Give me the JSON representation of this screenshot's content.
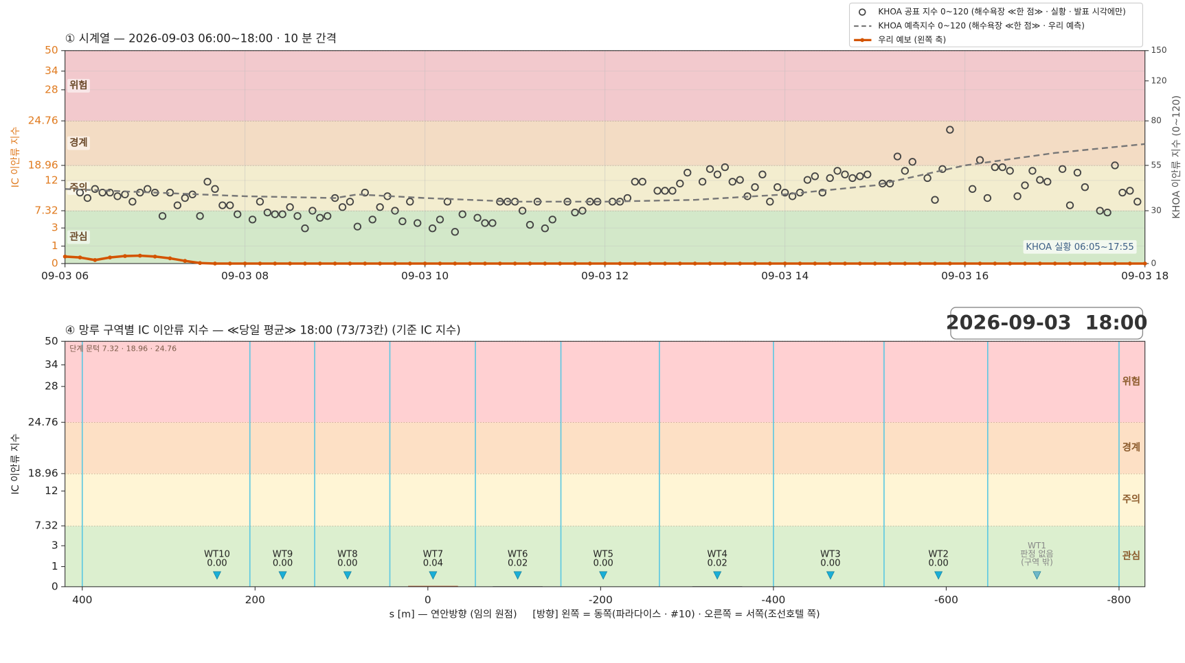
{
  "chart_data": [
    {
      "type": "line",
      "title": "① 시계열 — 2026-09-03 06:00~18:00 · 10 분 간격",
      "ylabel": "IC 이안류 지수",
      "y2label": "KHOA 이안류 지수 (0~120)",
      "xlim": [
        "06:00",
        "18:00"
      ],
      "xticks": [
        {
          "value": "06:00",
          "label": "09-03 06"
        },
        {
          "value": "08:00",
          "label": "09-03 08"
        },
        {
          "value": "10:00",
          "label": "09-03 10"
        },
        {
          "value": "12:00",
          "label": "09-03 12"
        },
        {
          "value": "14:00",
          "label": "09-03 14"
        },
        {
          "value": "16:00",
          "label": "09-03 16"
        },
        {
          "value": "18:00",
          "label": "09-03 18"
        }
      ],
      "ylim": [
        0,
        50
      ],
      "yticks": [
        0,
        1,
        3,
        7.32,
        12,
        18.96,
        24.76,
        28,
        34,
        50
      ],
      "y2lim": [
        0,
        150
      ],
      "y2ticks": [
        0,
        30,
        55,
        80,
        120,
        150
      ],
      "grid": true,
      "legend": "upper right",
      "annotation": "KHOA 실황 06:05~17:55",
      "bands": [
        {
          "from": 0,
          "to": 7.32,
          "label": "관심",
          "color": "#d3e8c9"
        },
        {
          "from": 7.32,
          "to": 18.96,
          "label": "주의",
          "color": "#f3edcf"
        },
        {
          "from": 18.96,
          "to": 24.76,
          "label": "경계",
          "color": "#f3dcc4"
        },
        {
          "from": 24.76,
          "to": 50,
          "label": "위험",
          "color": "#f2c9cd"
        }
      ],
      "series": [
        {
          "name": "KHOA 공표 지수 0~120 (해수욕장 ≪한 점≫ · 실황 · 발표 시각에만)",
          "style": "markers",
          "axis": "y2",
          "color": "#444444",
          "x": [
            "06:10",
            "06:15",
            "06:20",
            "06:25",
            "06:30",
            "06:35",
            "06:40",
            "06:45",
            "06:50",
            "06:55",
            "07:00",
            "07:05",
            "07:10",
            "07:15",
            "07:20",
            "07:25",
            "07:30",
            "07:35",
            "07:40",
            "07:45",
            "07:50",
            "07:55",
            "08:05",
            "08:10",
            "08:15",
            "08:20",
            "08:25",
            "08:30",
            "08:35",
            "08:40",
            "08:45",
            "08:50",
            "08:55",
            "09:00",
            "09:05",
            "09:10",
            "09:15",
            "09:20",
            "09:25",
            "09:30",
            "09:35",
            "09:40",
            "09:45",
            "09:50",
            "09:55",
            "10:05",
            "10:10",
            "10:15",
            "10:20",
            "10:25",
            "10:35",
            "10:40",
            "10:45",
            "10:50",
            "10:55",
            "11:00",
            "11:05",
            "11:10",
            "11:15",
            "11:20",
            "11:25",
            "11:35",
            "11:40",
            "11:45",
            "11:50",
            "11:55",
            "12:05",
            "12:10",
            "12:15",
            "12:20",
            "12:25",
            "12:35",
            "12:40",
            "12:45",
            "12:50",
            "12:55",
            "13:05",
            "13:10",
            "13:15",
            "13:20",
            "13:25",
            "13:30",
            "13:35",
            "13:40",
            "13:45",
            "13:50",
            "13:55",
            "14:00",
            "14:05",
            "14:10",
            "14:15",
            "14:20",
            "14:25",
            "14:30",
            "14:35",
            "14:40",
            "14:45",
            "14:50",
            "14:55",
            "15:05",
            "15:10",
            "15:15",
            "15:20",
            "15:25",
            "15:35",
            "15:40",
            "15:45",
            "15:50",
            "16:05",
            "16:10",
            "16:15",
            "16:20",
            "16:25",
            "16:30",
            "16:35",
            "16:40",
            "16:45",
            "16:50",
            "16:55",
            "17:05",
            "17:10",
            "17:15",
            "17:20",
            "17:30",
            "17:35",
            "17:40",
            "17:45",
            "17:50",
            "17:55"
          ],
          "values": [
            40,
            37,
            42,
            40,
            40,
            38,
            39,
            35,
            40,
            42,
            40,
            27,
            40,
            33,
            37,
            39,
            27,
            46,
            42,
            33,
            33,
            28,
            25,
            35,
            29,
            28,
            28,
            32,
            27,
            20,
            30,
            26,
            27,
            37,
            32,
            35,
            21,
            40,
            25,
            32,
            38,
            30,
            24,
            35,
            23,
            20,
            25,
            35,
            18,
            28,
            26,
            23,
            23,
            35,
            35,
            35,
            30,
            22,
            35,
            20,
            25,
            35,
            29,
            30,
            35,
            35,
            35,
            35,
            37,
            46,
            46,
            41,
            41,
            41,
            45,
            51,
            46,
            53,
            50,
            54,
            46,
            47,
            38,
            43,
            50,
            35,
            43,
            40,
            38,
            40,
            47,
            49,
            40,
            48,
            52,
            50,
            48,
            49,
            50,
            45,
            45,
            60,
            52,
            57,
            48,
            36,
            53,
            75,
            42,
            58,
            37,
            54,
            54,
            52,
            38,
            44,
            52,
            47,
            46,
            53,
            33,
            51,
            43,
            30,
            29,
            55,
            40,
            41,
            35
          ]
        },
        {
          "name": "KHOA 예측지수 0~120 (해수욕장 ≪한 점≫ · 우리 예측)",
          "style": "dashed",
          "axis": "y2",
          "color": "#777777",
          "x": [
            "06:00",
            "07:00",
            "08:00",
            "09:00",
            "09:15",
            "10:00",
            "11:00",
            "12:00",
            "13:00",
            "14:00",
            "15:00",
            "16:00",
            "17:00",
            "18:00"
          ],
          "values": [
            42,
            40,
            38,
            37,
            39,
            37,
            35,
            35,
            36,
            39,
            44,
            55,
            62,
            67
          ]
        },
        {
          "name": "우리 예보 (왼쪽 축)",
          "style": "line",
          "color": "#d35400",
          "x": [
            "06:00",
            "06:10",
            "06:20",
            "06:30",
            "06:40",
            "06:50",
            "07:00",
            "07:10",
            "07:20",
            "07:30",
            "07:40",
            "07:50",
            "08:00",
            "08:10",
            "08:20",
            "08:30",
            "08:40",
            "08:50",
            "09:00",
            "09:10",
            "09:20",
            "09:30",
            "09:40",
            "09:50",
            "10:00",
            "10:10",
            "10:20",
            "10:30",
            "10:40",
            "10:50",
            "11:00",
            "11:10",
            "11:20",
            "11:30",
            "11:40",
            "11:50",
            "12:00",
            "12:10",
            "12:20",
            "12:30",
            "12:40",
            "12:50",
            "13:00",
            "13:10",
            "13:20",
            "13:30",
            "13:40",
            "13:50",
            "14:00",
            "14:10",
            "14:20",
            "14:30",
            "14:40",
            "14:50",
            "15:00",
            "15:10",
            "15:20",
            "15:30",
            "15:40",
            "15:50",
            "16:00",
            "16:10",
            "16:20",
            "16:30",
            "16:40",
            "16:50",
            "17:00",
            "17:10",
            "17:20",
            "17:30",
            "17:40",
            "17:50",
            "18:00"
          ],
          "values": [
            0.4,
            0.35,
            0.2,
            0.35,
            0.43,
            0.45,
            0.4,
            0.3,
            0.15,
            0.03,
            0,
            0,
            0,
            0,
            0,
            0,
            0,
            0,
            0,
            0,
            0,
            0,
            0,
            0,
            0,
            0,
            0,
            0,
            0,
            0,
            0,
            0,
            0,
            0,
            0,
            0,
            0,
            0,
            0,
            0,
            0,
            0,
            0,
            0,
            0,
            0,
            0,
            0,
            0,
            0,
            0,
            0,
            0,
            0,
            0,
            0,
            0,
            0,
            0,
            0,
            0,
            0,
            0,
            0,
            0,
            0,
            0,
            0,
            0,
            0,
            0,
            0,
            0
          ]
        }
      ]
    },
    {
      "type": "bar",
      "title": "④ 망루 구역별 IC 이안류 지수 — ≪당일 평균≫ 18:00  (73/73칸)   (기준 IC 지수)",
      "timestamp": "2026-09-03  18:00",
      "threshold_note": "단계 문턱 7.32 · 18.96 · 24.76",
      "xlabel": "s [m] — 연안방향 (임의 원점)     [방향] 왼쪽 = 동쪽(파라다이스 · #10) · 오른쪽 = 서쪽(조선호텔 쪽)",
      "ylabel": "IC 이안류 지수",
      "xlim": [
        420,
        -830
      ],
      "xticks": [
        400,
        200,
        0,
        -200,
        -400,
        -600,
        -800
      ],
      "ylim": [
        0,
        50
      ],
      "yticks": [
        0,
        1,
        3,
        7.32,
        12,
        18.96,
        24.76,
        28,
        34,
        50
      ],
      "boundaries": [
        400,
        206,
        131,
        44,
        -55,
        -154,
        -268,
        -400,
        -528,
        -648,
        -800
      ],
      "boundary_color": "#5cc8e2",
      "marker_color": "#1aaed6",
      "bands": [
        {
          "from": 0,
          "to": 7.32,
          "label": "관심",
          "color": "#dcefcf"
        },
        {
          "from": 7.32,
          "to": 18.96,
          "label": "주의",
          "color": "#fff5d5"
        },
        {
          "from": 18.96,
          "to": 24.76,
          "label": "경계",
          "color": "#fde0c5"
        },
        {
          "from": 24.76,
          "to": 50,
          "label": "위험",
          "color": "#ffd0d2"
        }
      ],
      "categories": [
        "WT10",
        "WT9",
        "WT8",
        "WT7",
        "WT6",
        "WT5",
        "WT4",
        "WT3",
        "WT2",
        "WT1"
      ],
      "positions": [
        244,
        168,
        93,
        -6,
        -104,
        -203,
        -335,
        -466,
        -591,
        -705
      ],
      "values": [
        0,
        0,
        0,
        0.04,
        0.02,
        0,
        0.02,
        0,
        0,
        null
      ],
      "value_labels": [
        "0.00",
        "0.00",
        "0.00",
        "0.04",
        "0.02",
        "0.00",
        "0.02",
        "0.00",
        "0.00",
        null
      ],
      "no_value_label": [
        "판정 없음",
        "(구역 밖)"
      ],
      "colors": [
        "#222222",
        "#222222",
        "#222222",
        "#b5451b",
        "#222222",
        "#222222",
        "#222222",
        "#222222",
        "#222222",
        "#222222"
      ]
    }
  ]
}
